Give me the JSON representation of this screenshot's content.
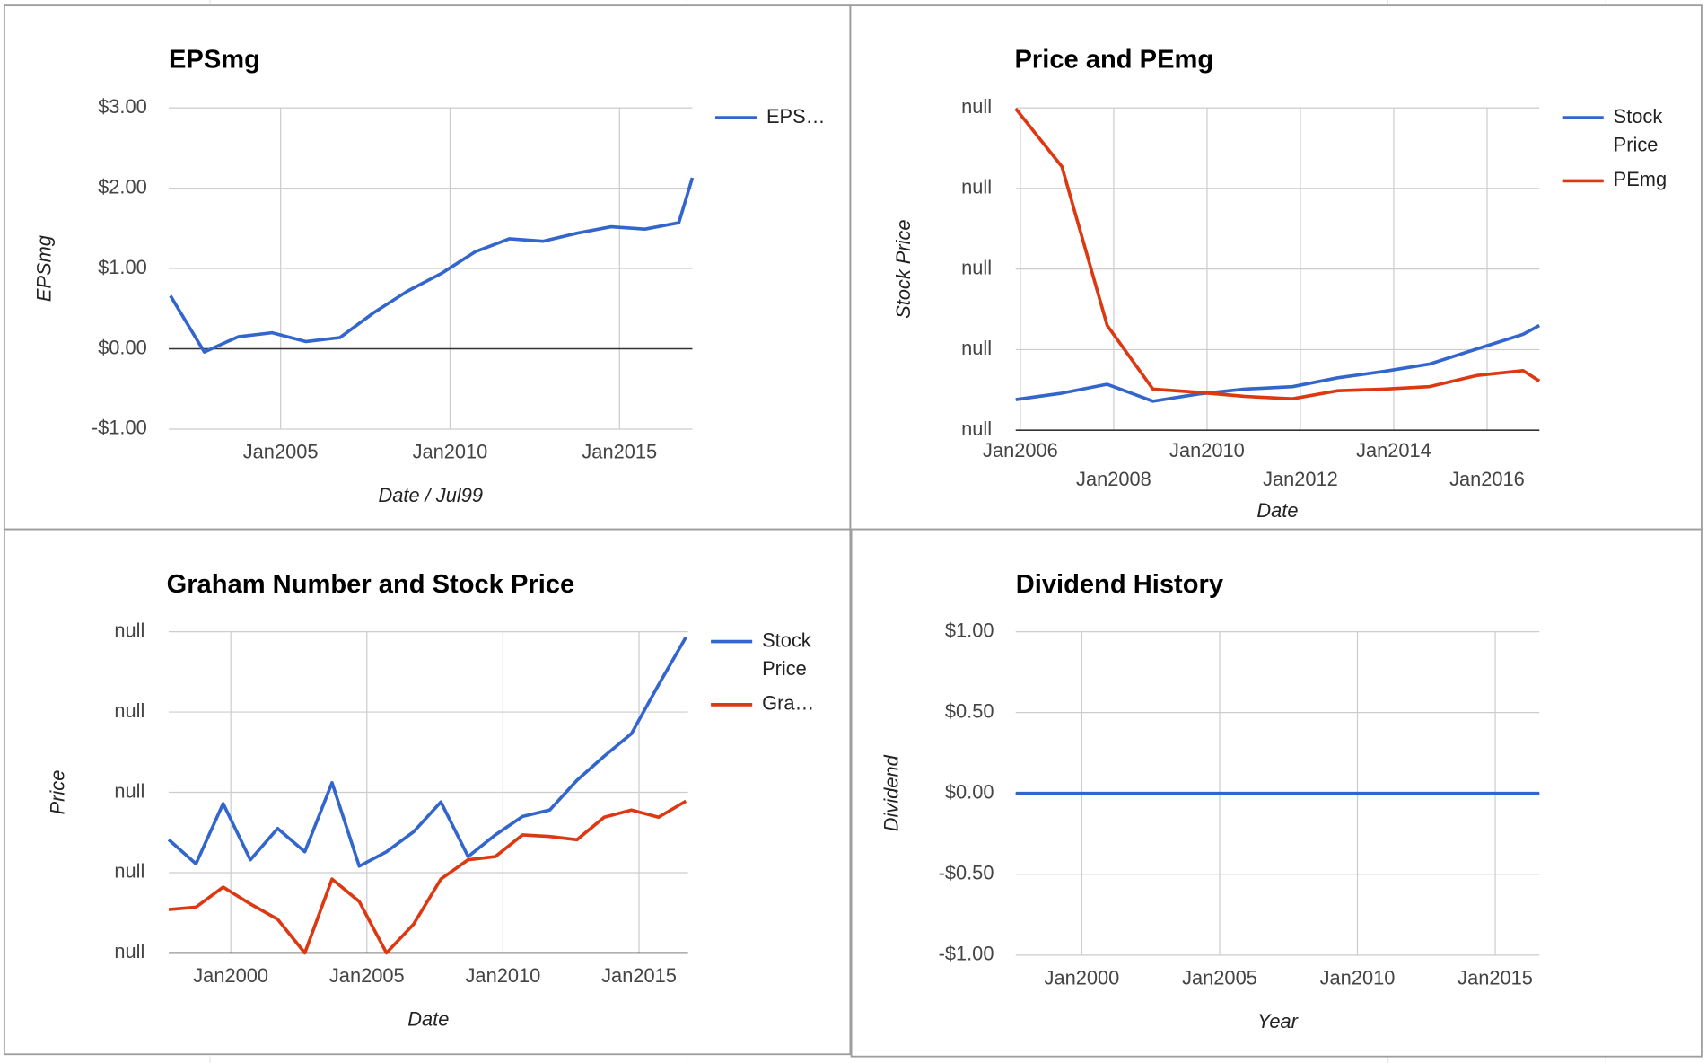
{
  "chart_data": [
    {
      "type": "line",
      "title": "EPSmg",
      "xlabel": "Date / Jul99",
      "ylabel": "EPSmg",
      "grid": true,
      "legend": "right",
      "x": [
        2001.75,
        2002.75,
        2003.75,
        2004.75,
        2005.75,
        2006.75,
        2007.75,
        2008.75,
        2009.75,
        2010.75,
        2011.75,
        2012.75,
        2013.75,
        2014.75,
        2015.75,
        2016.75,
        2017.15
      ],
      "series": [
        {
          "name": "EPS…",
          "color": "#3366cc",
          "values": [
            0.66,
            -0.04,
            0.15,
            0.2,
            0.09,
            0.14,
            0.45,
            0.72,
            0.94,
            1.21,
            1.37,
            1.34,
            1.44,
            1.52,
            1.49,
            1.57,
            2.13
          ]
        }
      ],
      "xlim": [
        2001.7,
        2017.15
      ],
      "ylim": [
        -1,
        3
      ],
      "xticks": [
        {
          "value": 2005,
          "label": "Jan2005"
        },
        {
          "value": 2010,
          "label": "Jan2010"
        },
        {
          "value": 2015,
          "label": "Jan2015"
        }
      ],
      "yticks": [
        {
          "value": -1,
          "label": "-$1.00"
        },
        {
          "value": 0,
          "label": "$0.00"
        },
        {
          "value": 1,
          "label": "$1.00"
        },
        {
          "value": 2,
          "label": "$2.00"
        },
        {
          "value": 3,
          "label": "$3.00"
        }
      ]
    },
    {
      "type": "line",
      "title": "Price and PEmg",
      "xlabel": "Date",
      "ylabel": "Stock Price",
      "grid": true,
      "legend": "right",
      "x": [
        2005.9,
        2006.89,
        2007.86,
        2008.84,
        2009.82,
        2010.8,
        2011.83,
        2012.8,
        2013.79,
        2014.76,
        2015.79,
        2016.77,
        2017.12
      ],
      "series": [
        {
          "name": "Stock Price",
          "color": "#3366cc",
          "values": [
            0.38,
            0.46,
            0.57,
            0.36,
            0.45,
            0.51,
            0.54,
            0.65,
            0.73,
            0.82,
            1.01,
            1.19,
            1.3
          ]
        },
        {
          "name": "PEmg",
          "color": "#dc3912",
          "values": [
            3.99,
            3.27,
            1.3,
            0.51,
            0.47,
            0.42,
            0.39,
            0.49,
            0.51,
            0.54,
            0.68,
            0.74,
            0.61
          ]
        }
      ],
      "xlim": [
        2005.9,
        2017.12
      ],
      "ylim": [
        0,
        4
      ],
      "xticks": [
        {
          "value": 2006,
          "label": "Jan2006"
        },
        {
          "value": 2008,
          "label": "Jan2008"
        },
        {
          "value": 2010,
          "label": "Jan2010"
        },
        {
          "value": 2012,
          "label": "Jan2012"
        },
        {
          "value": 2014,
          "label": "Jan2014"
        },
        {
          "value": 2016,
          "label": "Jan2016"
        }
      ],
      "yticks": [
        {
          "value": 0,
          "label": "null"
        },
        {
          "value": 1,
          "label": "null"
        },
        {
          "value": 2,
          "label": "null"
        },
        {
          "value": 3,
          "label": "null"
        },
        {
          "value": 4,
          "label": "null"
        }
      ]
    },
    {
      "type": "line",
      "title": "Graham Number and Stock Price",
      "xlabel": "Date",
      "ylabel": "Price",
      "grid": true,
      "legend": "right",
      "x": [
        1997.72,
        1998.72,
        1999.72,
        2000.72,
        2001.72,
        2002.72,
        2003.72,
        2004.72,
        2005.72,
        2006.72,
        2007.72,
        2008.72,
        2009.72,
        2010.72,
        2011.72,
        2012.72,
        2013.72,
        2014.72,
        2015.72,
        2016.72
      ],
      "series": [
        {
          "name": "Stock Price",
          "color": "#3366cc",
          "values": [
            1.41,
            1.11,
            1.86,
            1.16,
            1.55,
            1.26,
            2.12,
            1.08,
            1.26,
            1.51,
            1.88,
            1.2,
            1.47,
            1.7,
            1.78,
            2.15,
            2.45,
            2.73,
            3.34,
            3.93
          ]
        },
        {
          "name": "Gra…",
          "color": "#dc3912",
          "values": [
            0.54,
            0.57,
            0.82,
            0.61,
            0.42,
            0,
            0.92,
            0.64,
            0,
            0.36,
            0.92,
            1.16,
            1.2,
            1.47,
            1.45,
            1.41,
            1.69,
            1.78,
            1.69,
            1.89
          ]
        }
      ],
      "xlim": [
        1997.72,
        2016.8
      ],
      "ylim": [
        0,
        4
      ],
      "xticks": [
        {
          "value": 2000,
          "label": "Jan2000"
        },
        {
          "value": 2005,
          "label": "Jan2005"
        },
        {
          "value": 2010,
          "label": "Jan2010"
        },
        {
          "value": 2015,
          "label": "Jan2015"
        }
      ],
      "yticks": [
        {
          "value": 0,
          "label": "null"
        },
        {
          "value": 1,
          "label": "null"
        },
        {
          "value": 2,
          "label": "null"
        },
        {
          "value": 3,
          "label": "null"
        },
        {
          "value": 4,
          "label": "null"
        }
      ]
    },
    {
      "type": "line",
      "title": "Dividend History",
      "xlabel": "Year",
      "ylabel": "Dividend",
      "grid": true,
      "x": [
        1997.6,
        1998.6,
        1999.6,
        2000.6,
        2001.6,
        2002.6,
        2003.6,
        2004.6,
        2005.6,
        2006.6,
        2007.6,
        2008.6,
        2009.6,
        2010.6,
        2011.6,
        2012.6,
        2013.6,
        2014.6,
        2015.6,
        2016.6
      ],
      "series": [
        {
          "color": "#3366cc",
          "values": [
            0,
            0,
            0,
            0,
            0,
            0,
            0,
            0,
            0,
            0,
            0,
            0,
            0,
            0,
            0,
            0,
            0,
            0,
            0,
            0
          ]
        }
      ],
      "xlim": [
        1997.6,
        2016.6
      ],
      "ylim": [
        -1,
        1
      ],
      "xticks": [
        {
          "value": 2000,
          "label": "Jan2000"
        },
        {
          "value": 2005,
          "label": "Jan2005"
        },
        {
          "value": 2010,
          "label": "Jan2010"
        },
        {
          "value": 2015,
          "label": "Jan2015"
        }
      ],
      "yticks": [
        {
          "value": -1,
          "label": "-$1.00"
        },
        {
          "value": -0.5,
          "label": "-$0.50"
        },
        {
          "value": 0,
          "label": "$0.00"
        },
        {
          "value": 0.5,
          "label": "$0.50"
        },
        {
          "value": 1,
          "label": "$1.00"
        }
      ]
    }
  ]
}
